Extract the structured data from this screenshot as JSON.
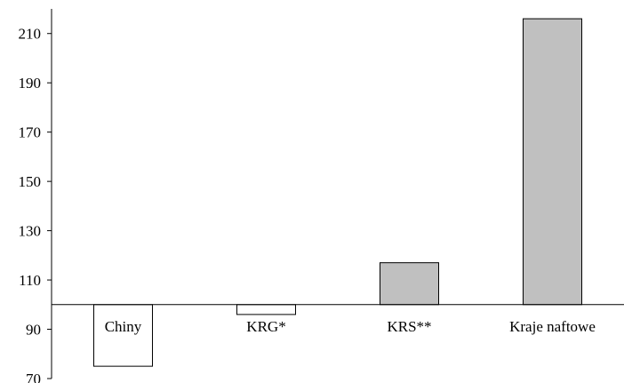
{
  "chart_data": {
    "type": "bar",
    "categories": [
      "Chiny",
      "KRG*",
      "KRS**",
      "Kraje naftowe"
    ],
    "values": [
      75,
      96,
      117,
      216
    ],
    "baseline": 100,
    "colors": {
      "below_baseline": "#ffffff",
      "above_baseline": "#c0c0c0",
      "outline": "#000000"
    },
    "title": "",
    "xlabel": "",
    "ylabel": "",
    "ylim": [
      70,
      220
    ],
    "yticks": [
      70,
      90,
      110,
      130,
      150,
      170,
      190,
      210
    ],
    "grid": false,
    "legend": false
  }
}
